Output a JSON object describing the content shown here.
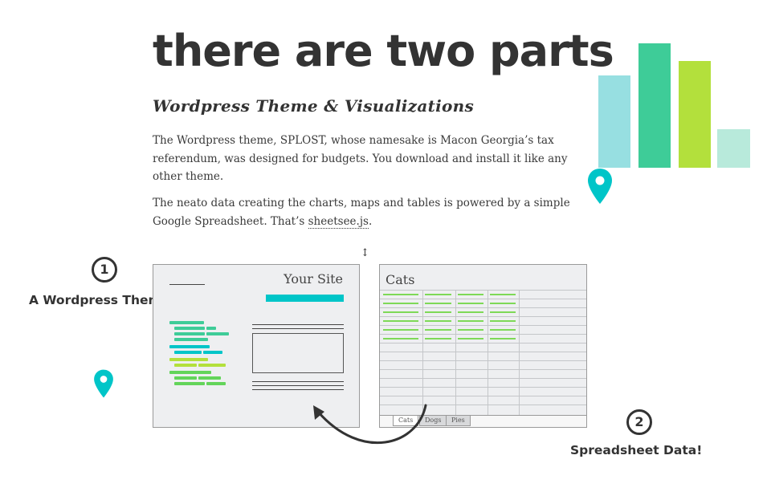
{
  "header": {
    "title": "there are two parts",
    "subtitle": "Wordpress Theme & Visualizations"
  },
  "body": {
    "paragraph1": "The Wordpress theme, SPLOST, whose namesake is Macon Georgia’s tax referendum, was designed for budgets. You download and install it like any other theme.",
    "paragraph2_text": "The neato data creating the charts, maps and tables is powered by a simple Google Spreadsheet. That’s ",
    "paragraph2_link": "sheetsee.js",
    "paragraph2_end": "."
  },
  "part1": {
    "number": "1",
    "label": "A Wordpress Theme"
  },
  "part2": {
    "number": "2",
    "label": "Spreadsheet Data!"
  },
  "site_mockup": {
    "title": "Your Site"
  },
  "spreadsheet_mockup": {
    "title": "Cats",
    "tabs": [
      "Cats",
      "Dogs",
      "Pies"
    ]
  },
  "resize_handle": "↕",
  "colors": {
    "teal": "#00c5c8",
    "green": "#3ecc98",
    "lime": "#b3e03c",
    "light_teal": "#97dfe1",
    "mint": "#b8eadb",
    "sheet_green": "#7ed957",
    "text": "#333333"
  },
  "decor": {
    "bar_chart_icon": "bar-chart-icon",
    "pin_icon": "map-pin-icon",
    "arrow_icon": "curved-arrow-icon"
  }
}
